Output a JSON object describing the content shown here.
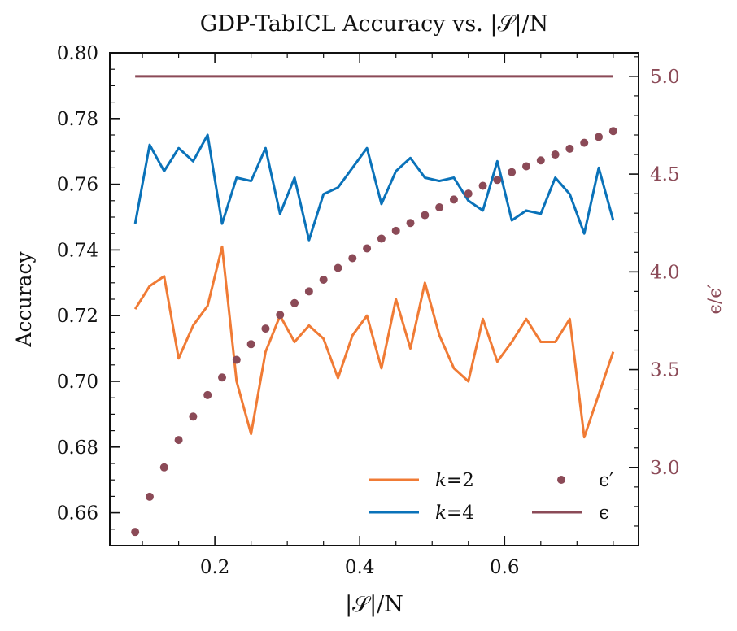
{
  "chart_data": {
    "type": "line",
    "title": "GDP-TabICL Accuracy vs. |𝒮|/N",
    "xlabel": "|𝒮|/N",
    "ylabel": "Accuracy",
    "y2label": "ϵ/ϵ′",
    "xlim": [
      0.055,
      0.785
    ],
    "ylim": [
      0.65,
      0.8
    ],
    "y2lim": [
      2.6,
      5.12
    ],
    "x_ticks": [
      0.2,
      0.4,
      0.6
    ],
    "x_tick_labels": [
      "0.2",
      "0.4",
      "0.6"
    ],
    "y_ticks": [
      0.66,
      0.68,
      0.7,
      0.72,
      0.74,
      0.76,
      0.78,
      0.8
    ],
    "y_tick_labels": [
      "0.66",
      "0.68",
      "0.70",
      "0.72",
      "0.74",
      "0.76",
      "0.78",
      "0.80"
    ],
    "y2_ticks": [
      3.0,
      3.5,
      4.0,
      4.5,
      5.0
    ],
    "y2_tick_labels": [
      "3.0",
      "3.5",
      "4.0",
      "4.5",
      "5.0"
    ],
    "x": [
      0.09,
      0.11,
      0.13,
      0.15,
      0.17,
      0.19,
      0.21,
      0.23,
      0.25,
      0.27,
      0.29,
      0.31,
      0.33,
      0.35,
      0.37,
      0.39,
      0.41,
      0.43,
      0.45,
      0.47,
      0.49,
      0.51,
      0.53,
      0.55,
      0.57,
      0.59,
      0.61,
      0.63,
      0.65,
      0.67,
      0.69,
      0.71,
      0.73,
      0.75
    ],
    "grid": false,
    "legend_position": "lower-right",
    "series": [
      {
        "name": "k=2",
        "legend_label": "𝑘=2",
        "axis": "left",
        "style": "line",
        "color": "#f07b35",
        "values": [
          0.722,
          0.729,
          0.732,
          0.707,
          0.717,
          0.723,
          0.741,
          0.7,
          0.684,
          0.709,
          0.72,
          0.712,
          0.717,
          0.713,
          0.701,
          0.714,
          0.72,
          0.704,
          0.725,
          0.71,
          0.73,
          0.714,
          0.704,
          0.7,
          0.719,
          0.706,
          0.712,
          0.719,
          0.712,
          0.712,
          0.719,
          0.683,
          0.696,
          0.709
        ]
      },
      {
        "name": "k=4",
        "legend_label": "𝑘=4",
        "axis": "left",
        "style": "line",
        "color": "#0a72b9",
        "values": [
          0.748,
          0.772,
          0.764,
          0.771,
          0.767,
          0.775,
          0.748,
          0.762,
          0.761,
          0.771,
          0.751,
          0.762,
          0.743,
          0.757,
          0.759,
          0.765,
          0.771,
          0.754,
          0.764,
          0.768,
          0.762,
          0.761,
          0.762,
          0.755,
          0.752,
          0.767,
          0.749,
          0.752,
          0.751,
          0.762,
          0.757,
          0.745,
          0.765,
          0.749
        ]
      },
      {
        "name": "ϵ′",
        "legend_label": "ϵ′",
        "axis": "right",
        "style": "dots",
        "color": "#8b4a57",
        "values": [
          2.67,
          2.85,
          3.0,
          3.14,
          3.26,
          3.37,
          3.46,
          3.55,
          3.63,
          3.71,
          3.78,
          3.84,
          3.9,
          3.96,
          4.02,
          4.07,
          4.12,
          4.17,
          4.21,
          4.25,
          4.29,
          4.33,
          4.37,
          4.4,
          4.44,
          4.47,
          4.51,
          4.54,
          4.57,
          4.6,
          4.63,
          4.66,
          4.69,
          4.72
        ]
      },
      {
        "name": "ϵ",
        "legend_label": "ϵ",
        "axis": "right",
        "style": "line",
        "color": "#8b4a57",
        "values": [
          5.0,
          5.0,
          5.0,
          5.0,
          5.0,
          5.0,
          5.0,
          5.0,
          5.0,
          5.0,
          5.0,
          5.0,
          5.0,
          5.0,
          5.0,
          5.0,
          5.0,
          5.0,
          5.0,
          5.0,
          5.0,
          5.0,
          5.0,
          5.0,
          5.0,
          5.0,
          5.0,
          5.0,
          5.0,
          5.0,
          5.0,
          5.0,
          5.0,
          5.0
        ]
      }
    ]
  }
}
